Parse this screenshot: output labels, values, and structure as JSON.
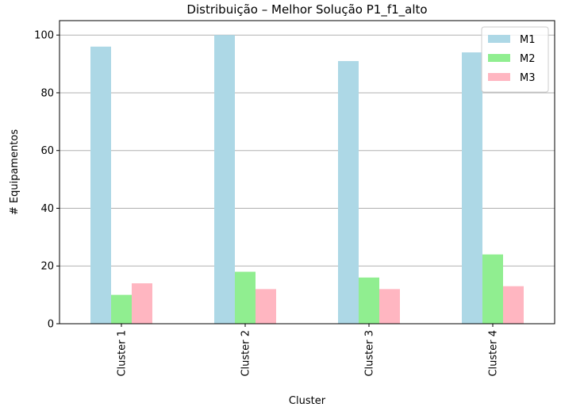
{
  "chart_data": {
    "type": "bar",
    "title": "Distribuição – Melhor Solução P1_f1_alto",
    "xlabel": "Cluster",
    "ylabel": "# Equipamentos",
    "categories": [
      "Cluster 1",
      "Cluster 2",
      "Cluster 3",
      "Cluster 4"
    ],
    "series": [
      {
        "name": "M1",
        "color": "#add8e6",
        "values": [
          96,
          100,
          91,
          94
        ]
      },
      {
        "name": "M2",
        "color": "#90ee90",
        "values": [
          10,
          18,
          16,
          24
        ]
      },
      {
        "name": "M3",
        "color": "#ffb6c1",
        "values": [
          14,
          12,
          12,
          13
        ]
      }
    ],
    "yticks": [
      0,
      20,
      40,
      60,
      80,
      100
    ],
    "ylim": [
      0,
      105
    ],
    "grid": "y",
    "legend": "top-right"
  }
}
